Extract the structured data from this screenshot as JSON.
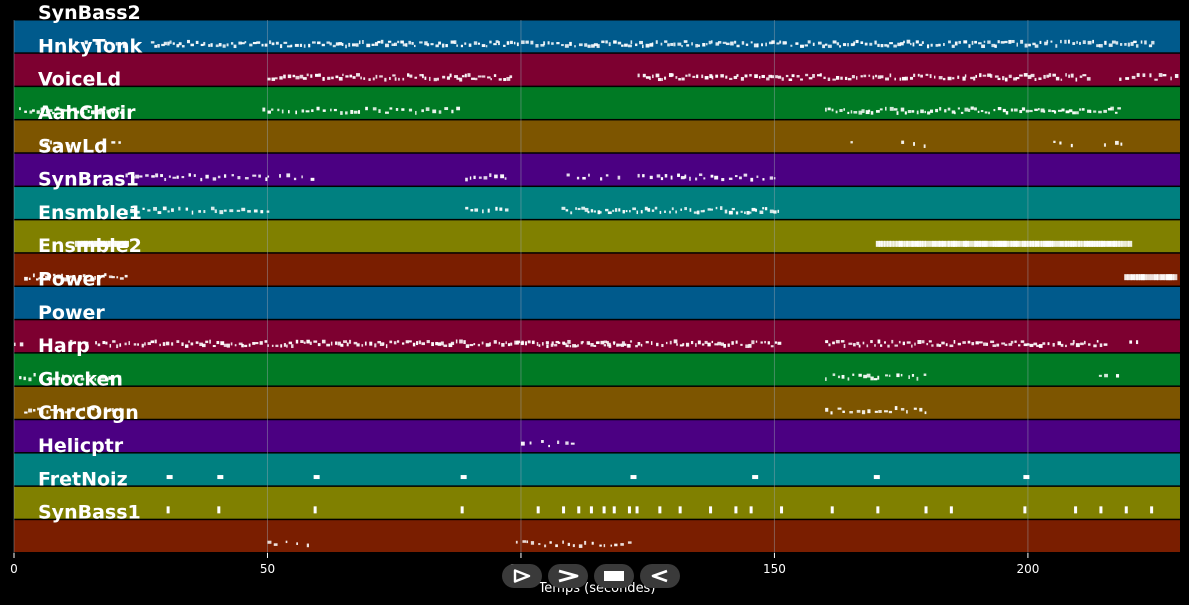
{
  "chart_data": {
    "type": "piano-roll",
    "xlabel": "Temps (secondes)",
    "xlim": [
      0,
      230
    ],
    "xticks": [
      0,
      50,
      100,
      150,
      200
    ],
    "tracks": [
      {
        "label": "SynBass2",
        "color": "#005a8c",
        "ranges": [
          [
            12,
            22,
            "sparse"
          ],
          [
            27,
            225,
            "dense"
          ]
        ]
      },
      {
        "label": "HnkyTonk",
        "color": "#7d0030",
        "ranges": [
          [
            50,
            98,
            "dense"
          ],
          [
            123,
            212,
            "dense"
          ],
          [
            218,
            229,
            "medium"
          ]
        ]
      },
      {
        "label": "VoiceLd",
        "color": "#007a24",
        "ranges": [
          [
            1,
            21,
            "dense"
          ],
          [
            49,
            88,
            "medium"
          ],
          [
            160,
            218,
            "dense"
          ]
        ]
      },
      {
        "label": "AahChoir",
        "color": "#7d5500",
        "ranges": [
          [
            6,
            11,
            "sparse"
          ],
          [
            17,
            21,
            "sparse"
          ],
          [
            165,
            166,
            "sparse"
          ],
          [
            175,
            180,
            "sparse"
          ],
          [
            205,
            210,
            "sparse"
          ],
          [
            215,
            219,
            "sparse"
          ]
        ]
      },
      {
        "label": "SawLd",
        "color": "#4b0082",
        "ranges": [
          [
            22,
            50,
            "medium"
          ],
          [
            50,
            59,
            "sparse"
          ],
          [
            89,
            98,
            "medium"
          ],
          [
            109,
            120,
            "sparse"
          ],
          [
            123,
            151,
            "medium"
          ]
        ]
      },
      {
        "label": "SynBras1",
        "color": "#008080",
        "ranges": [
          [
            22,
            50,
            "medium"
          ],
          [
            89,
            98,
            "medium"
          ],
          [
            108,
            151,
            "dense"
          ]
        ]
      },
      {
        "label": "Ensmble1",
        "color": "#808000",
        "ranges": [
          [
            12,
            22,
            "solid"
          ],
          [
            170,
            220,
            "solid"
          ]
        ]
      },
      {
        "label": "Ensmble2",
        "color": "#7a1e00",
        "ranges": [
          [
            2,
            22,
            "dense"
          ],
          [
            219,
            229,
            "solid"
          ]
        ]
      },
      {
        "label": "Power",
        "color": "#005a8c",
        "ranges": []
      },
      {
        "label": "Power",
        "color": "#7d0030",
        "ranges": [
          [
            0,
            2,
            "sparse"
          ],
          [
            11,
            14,
            "sparse"
          ],
          [
            16,
            151,
            "dense"
          ],
          [
            99,
            122,
            "medium"
          ],
          [
            160,
            215,
            "dense"
          ],
          [
            220,
            223,
            "sparse"
          ]
        ]
      },
      {
        "label": "Harp",
        "color": "#007a24",
        "ranges": [
          [
            1,
            21,
            "medium"
          ],
          [
            160,
            180,
            "medium"
          ],
          [
            214,
            218,
            "sparse"
          ]
        ]
      },
      {
        "label": "Glocken",
        "color": "#7d5500",
        "ranges": [
          [
            2,
            21,
            "medium"
          ],
          [
            160,
            180,
            "medium"
          ]
        ]
      },
      {
        "label": "ChrcOrgn",
        "color": "#4b0082",
        "ranges": [
          [
            100,
            112,
            "sparse"
          ]
        ]
      },
      {
        "label": "Helicptr",
        "color": "#008080",
        "ranges": []
      },
      {
        "label": "FretNoiz",
        "color": "#808000",
        "ranges": []
      },
      {
        "label": "SynBass1",
        "color": "#7a1e00",
        "ranges": [
          [
            50,
            59,
            "sparse"
          ],
          [
            99,
            122,
            "medium"
          ]
        ]
      }
    ],
    "hits": {
      "Helicptr": [
        30.5,
        40.5,
        59.5,
        88.5,
        122,
        146,
        170,
        199.5
      ],
      "FretNoiz": [
        30.5,
        40.5,
        59.5,
        88.5,
        103.5,
        108.5,
        111.5,
        114,
        116.5,
        118.5,
        121.5,
        123,
        127.5,
        131.5,
        137.5,
        142.5,
        145.5,
        151.5,
        161.5,
        170.5,
        180,
        185,
        199.5,
        209.5,
        214.5,
        219.5,
        224.5
      ]
    }
  },
  "controls": {
    "play_icon": "play-outline-icon",
    "forward_icon": "chevron-right-icon",
    "stop_icon": "stop-icon",
    "back_icon": "rewind-outline-icon"
  }
}
